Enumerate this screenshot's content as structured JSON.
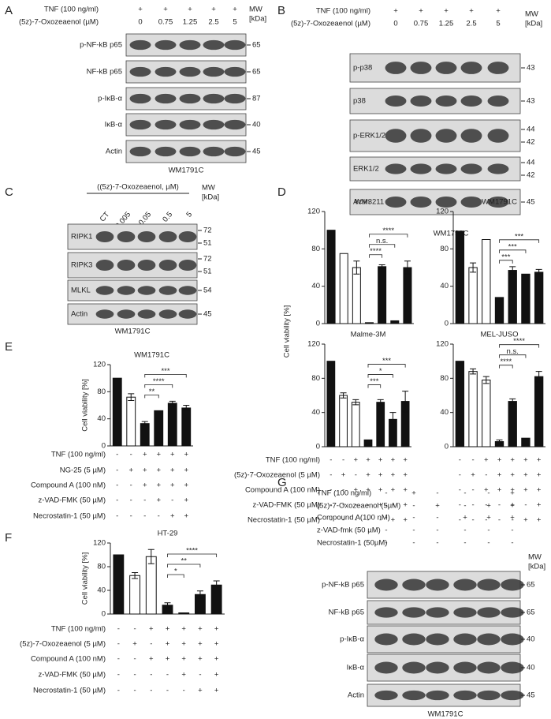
{
  "panels": {
    "A": {
      "label": "A",
      "header": [
        {
          "label": "TNF (100 ng/ml)",
          "cells": [
            "+",
            "+",
            "+",
            "+",
            "+"
          ]
        },
        {
          "label": "(5z)-7-Oxozeaenol (µM)",
          "cells": [
            "0",
            "0.75",
            "1.25",
            "2.5",
            "5"
          ]
        }
      ],
      "mw_header": [
        "MW",
        "[kDa]"
      ],
      "blots": [
        {
          "label": "p-NF-kB p65",
          "mw": [
            "65"
          ]
        },
        {
          "label": "NF-kB p65",
          "mw": [
            "65"
          ]
        },
        {
          "label": "p-IκB-α",
          "mw": [
            "87"
          ]
        },
        {
          "label": "IκB-α",
          "mw": [
            "40"
          ]
        },
        {
          "label": "Actin",
          "mw": [
            "45"
          ]
        }
      ],
      "cell_line": "WM1791C"
    },
    "B": {
      "label": "B",
      "header": [
        {
          "label": "TNF (100 ng/ml)",
          "cells": [
            "+",
            "+",
            "+",
            "+",
            "+"
          ]
        },
        {
          "label": "(5z)-7-Oxozeaenol (µM)",
          "cells": [
            "0",
            "0.75",
            "1.25",
            "2.5",
            "5"
          ]
        }
      ],
      "mw_header": [
        "MW",
        "[kDa]"
      ],
      "blots": [
        {
          "label": "p-p38",
          "mw": [
            "43"
          ]
        },
        {
          "label": "p38",
          "mw": [
            "43"
          ]
        },
        {
          "label": "p-ERK1/2",
          "mw": [
            "44",
            "42"
          ]
        },
        {
          "label": "ERK1/2",
          "mw": [
            "44",
            "42"
          ]
        },
        {
          "label": "Actin",
          "mw": [
            "45"
          ]
        }
      ],
      "cell_line": "WM1791C"
    },
    "C": {
      "label": "C",
      "title": "((5z)-7-Oxozeaenol, µM)",
      "lanes": [
        "CT",
        "0.005",
        "0.05",
        "0.5",
        "5"
      ],
      "mw_header": [
        "MW",
        "[kDa]"
      ],
      "blots": [
        {
          "label": "RIPK1",
          "mw": [
            "72",
            "51"
          ]
        },
        {
          "label": "RIPK3",
          "mw": [
            "72",
            "51"
          ]
        },
        {
          "label": "MLKL",
          "mw": [
            "54"
          ]
        },
        {
          "label": "Actin",
          "mw": [
            "45"
          ]
        }
      ],
      "cell_line": "WM1791C"
    },
    "D": {
      "label": "D",
      "ylabel": "Cell viability [%]",
      "table": [
        {
          "label": "TNF (100 ng/ml)",
          "cells": [
            "-",
            "-",
            "+",
            "+",
            "+",
            "+",
            "+",
            "-",
            "-",
            "+",
            "+",
            "+",
            "+",
            "+"
          ]
        },
        {
          "label": "(5z)-7-Oxozeaenol (5 µM)",
          "cells": [
            "-",
            "+",
            "-",
            "+",
            "+",
            "+",
            "+",
            "-",
            "+",
            "-",
            "+",
            "+",
            "+",
            "+"
          ]
        },
        {
          "label": "Compound A (100 nM)",
          "cells": [
            "-",
            "-",
            "+",
            "+",
            "+",
            "+",
            "+",
            "-",
            "-",
            "+",
            "+",
            "+",
            "+",
            "+"
          ]
        },
        {
          "label": "z-VAD-FMK (50 µM)",
          "cells": [
            "-",
            "-",
            "-",
            "-",
            "+",
            "-",
            "+",
            "-",
            "-",
            "-",
            "-",
            "+",
            "-",
            "+"
          ]
        },
        {
          "label": "Necrostatin-1 (50 µM)",
          "cells": [
            "-",
            "-",
            "-",
            "-",
            "-",
            "+",
            "+",
            "-",
            "-",
            "-",
            "-",
            "-",
            "+",
            "+"
          ]
        }
      ]
    },
    "E": {
      "label": "E",
      "table": [
        {
          "label": "TNF (100 ng/ml)",
          "cells": [
            "-",
            "-",
            "+",
            "+",
            "+",
            "+"
          ]
        },
        {
          "label": "NG-25 (5 µM)",
          "cells": [
            "-",
            "+",
            "+",
            "+",
            "+",
            "+"
          ]
        },
        {
          "label": "Compound A (100 nM)",
          "cells": [
            "-",
            "-",
            "+",
            "+",
            "+",
            "+"
          ]
        },
        {
          "label": "z-VAD-FMK (50 µM)",
          "cells": [
            "-",
            "-",
            "-",
            "+",
            "-",
            "+"
          ]
        },
        {
          "label": "Necrostatin-1 (50 µM)",
          "cells": [
            "-",
            "-",
            "-",
            "-",
            "+",
            "+"
          ]
        }
      ]
    },
    "F": {
      "label": "F",
      "table": [
        {
          "label": "TNF (100 ng/ml)",
          "cells": [
            "-",
            "-",
            "+",
            "+",
            "+",
            "+",
            "+"
          ]
        },
        {
          "label": "(5z)-7-Oxozeaenol (5 µM)",
          "cells": [
            "-",
            "+",
            "-",
            "+",
            "+",
            "+",
            "+"
          ]
        },
        {
          "label": "Compound A (100 nM)",
          "cells": [
            "-",
            "-",
            "+",
            "+",
            "+",
            "+",
            "+"
          ]
        },
        {
          "label": "z-VAD-FMK (50 µM)",
          "cells": [
            "-",
            "-",
            "-",
            "-",
            "+",
            "-",
            "+"
          ]
        },
        {
          "label": "Necrostatin-1 (50 µM)",
          "cells": [
            "-",
            "-",
            "-",
            "-",
            "-",
            "+",
            "+"
          ]
        }
      ]
    },
    "G": {
      "label": "G",
      "header": [
        {
          "label": "TNF (100 ng/ml)",
          "cells": [
            "-",
            "+",
            "-",
            "-",
            "-",
            "+"
          ]
        },
        {
          "label": "(5z)-7-Oxozeaenol (5µM)",
          "cells": [
            "-",
            "-",
            "+",
            "-",
            "+",
            "+"
          ]
        },
        {
          "label": "Compound A(100 nM)",
          "cells": [
            "-",
            "-",
            "-",
            "+",
            "+",
            "+"
          ]
        },
        {
          "label": "z-VAD-fmk (50 µM)",
          "cells": [
            "-",
            "-",
            "-",
            "-",
            "-",
            "-"
          ]
        },
        {
          "label": "Necrostatin-1 (50µM)",
          "cells": [
            "-",
            "-",
            "-",
            "-",
            "-",
            "-"
          ]
        }
      ],
      "mw_header": [
        "MW",
        "[kDa]"
      ],
      "blots": [
        {
          "label": "p-NF-kB p65",
          "mw": [
            "65"
          ]
        },
        {
          "label": "NF-kB p65",
          "mw": [
            "65"
          ]
        },
        {
          "label": "p-IκB-α",
          "mw": [
            "40"
          ]
        },
        {
          "label": "IκB-α",
          "mw": [
            "40"
          ]
        },
        {
          "label": "Actin",
          "mw": [
            "45"
          ]
        }
      ],
      "cell_line": "WM1791C"
    }
  },
  "chart_data": [
    {
      "type": "bar",
      "title": "WM3211",
      "values": [
        100,
        75,
        60,
        1,
        61,
        3,
        60
      ],
      "errors": [
        null,
        null,
        7,
        null,
        2,
        null,
        7
      ],
      "colors": [
        "#111111",
        "#ffffff",
        "#ffffff",
        "#111111",
        "#111111",
        "#111111",
        "#111111"
      ],
      "significance": [
        "****",
        "n.s.",
        "****"
      ],
      "ylim": [
        0,
        120
      ],
      "yticks": [
        0,
        40,
        80,
        120
      ]
    },
    {
      "type": "bar",
      "title": "WM1791C",
      "values": [
        99,
        60,
        90,
        28,
        57,
        53,
        55
      ],
      "errors": [
        null,
        5,
        null,
        null,
        4,
        null,
        3
      ],
      "colors": [
        "#111111",
        "#ffffff",
        "#ffffff",
        "#111111",
        "#111111",
        "#111111",
        "#111111"
      ],
      "significance": [
        "***",
        "***",
        "***"
      ],
      "ylim": [
        0,
        120
      ],
      "yticks": [
        0,
        40,
        80,
        120
      ]
    },
    {
      "type": "bar",
      "title": "Malme-3M",
      "values": [
        100,
        60,
        52,
        8,
        52,
        32,
        53
      ],
      "errors": [
        null,
        3,
        3,
        null,
        3,
        8,
        12
      ],
      "colors": [
        "#111111",
        "#ffffff",
        "#ffffff",
        "#111111",
        "#111111",
        "#111111",
        "#111111"
      ],
      "significance": [
        "***",
        "*",
        "***"
      ],
      "ylim": [
        0,
        120
      ],
      "yticks": [
        0,
        40,
        80,
        120
      ]
    },
    {
      "type": "bar",
      "title": "MEL-JUSO",
      "values": [
        100,
        88,
        78,
        6,
        53,
        10,
        82
      ],
      "errors": [
        null,
        3,
        4,
        2,
        3,
        null,
        6
      ],
      "colors": [
        "#111111",
        "#ffffff",
        "#ffffff",
        "#111111",
        "#111111",
        "#111111",
        "#111111"
      ],
      "significance": [
        "****",
        "n.s.",
        "****"
      ],
      "ylim": [
        0,
        120
      ],
      "yticks": [
        0,
        40,
        80,
        120
      ]
    },
    {
      "type": "bar",
      "title": "WM1791C",
      "ylabel": "Cell viability [%]",
      "values": [
        100,
        72,
        33,
        52,
        63,
        56
      ],
      "errors": [
        null,
        5,
        3,
        null,
        3,
        4
      ],
      "colors": [
        "#111111",
        "#ffffff",
        "#111111",
        "#111111",
        "#111111",
        "#111111"
      ],
      "significance": [
        "**",
        "****",
        "***"
      ],
      "ylim": [
        0,
        120
      ],
      "yticks": [
        0,
        40,
        80,
        120
      ]
    },
    {
      "type": "bar",
      "title": "HT-29",
      "ylabel": "Cell viability [%]",
      "values": [
        100,
        65,
        97,
        15,
        2,
        33,
        49
      ],
      "errors": [
        null,
        5,
        12,
        4,
        null,
        6,
        7
      ],
      "colors": [
        "#111111",
        "#ffffff",
        "#ffffff",
        "#111111",
        "#111111",
        "#111111",
        "#111111"
      ],
      "significance": [
        "*",
        "**",
        "****"
      ],
      "ylim": [
        0,
        120
      ],
      "yticks": [
        0,
        40,
        80,
        120
      ]
    }
  ]
}
